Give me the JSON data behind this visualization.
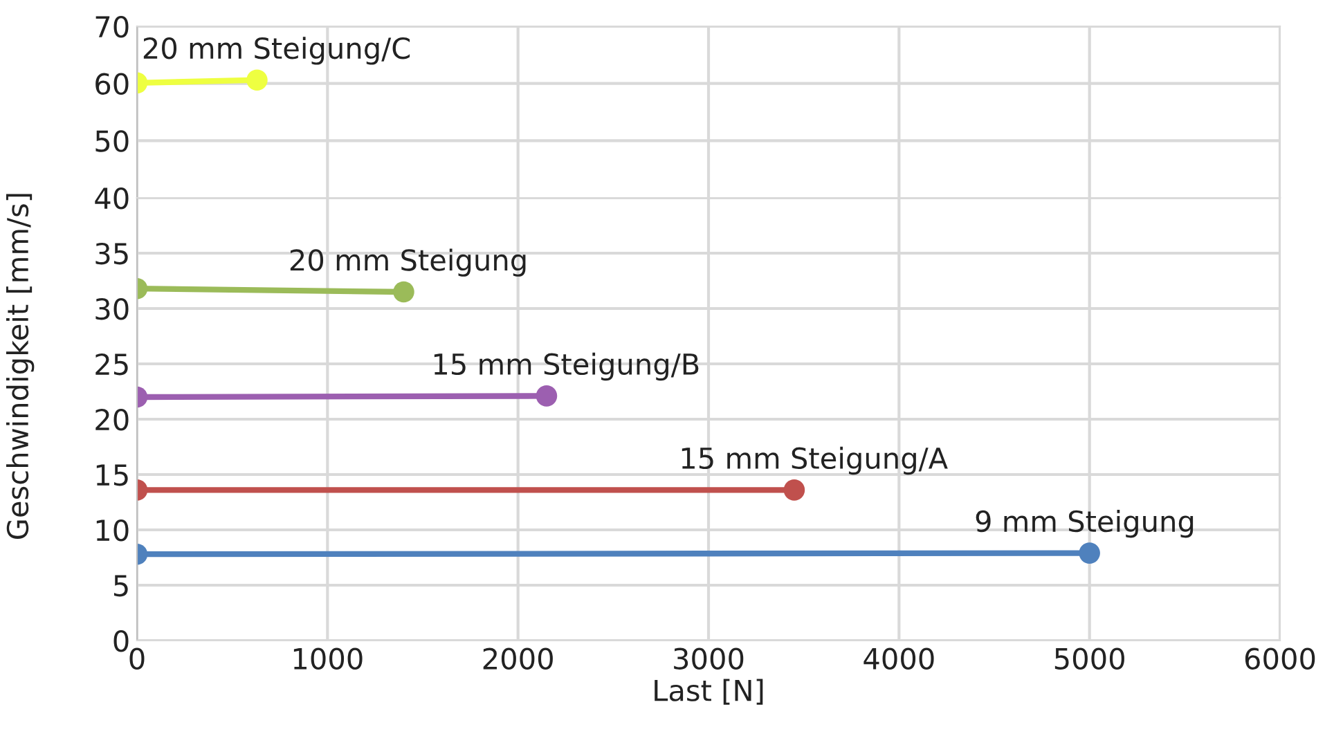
{
  "chart_data": [
    {
      "type": "line",
      "xlim": [
        0,
        6000
      ],
      "xticks": [
        0,
        1000,
        2000,
        3000,
        4000,
        5000,
        6000
      ],
      "ylim": [
        40,
        70
      ],
      "yticks": [
        50,
        60,
        70
      ],
      "grid": true,
      "marker": "circle",
      "tick_labels": "y",
      "series": [
        {
          "name": "20 mm Steigung/C",
          "color": "#eeff41",
          "x": [
            0,
            630
          ],
          "values": [
            60.1,
            60.6
          ]
        }
      ]
    },
    {
      "type": "line",
      "xlim": [
        0,
        6000
      ],
      "xticks": [
        0,
        1000,
        2000,
        3000,
        4000,
        5000,
        6000
      ],
      "ylim": [
        0,
        40
      ],
      "yticks": [
        0,
        5,
        10,
        15,
        20,
        25,
        30,
        35,
        40
      ],
      "grid": true,
      "marker": "circle",
      "xlabel": "Last [N]",
      "ylabel": "Geschwindigkeit [mm/s]",
      "series": [
        {
          "name": "20 mm Steigung",
          "color": "#9bbb59",
          "x": [
            0,
            1400
          ],
          "values": [
            31.8,
            31.5
          ]
        },
        {
          "name": "15 mm Steigung/B",
          "color": "#9c5fb0",
          "x": [
            0,
            2150
          ],
          "values": [
            22.0,
            22.1
          ]
        },
        {
          "name": "15 mm Steigung/A",
          "color": "#c0504d",
          "x": [
            0,
            3450
          ],
          "values": [
            13.6,
            13.6
          ]
        },
        {
          "name": "9 mm Steigung",
          "color": "#4f81bd",
          "x": [
            0,
            5000
          ],
          "values": [
            7.8,
            7.9
          ]
        }
      ]
    }
  ]
}
